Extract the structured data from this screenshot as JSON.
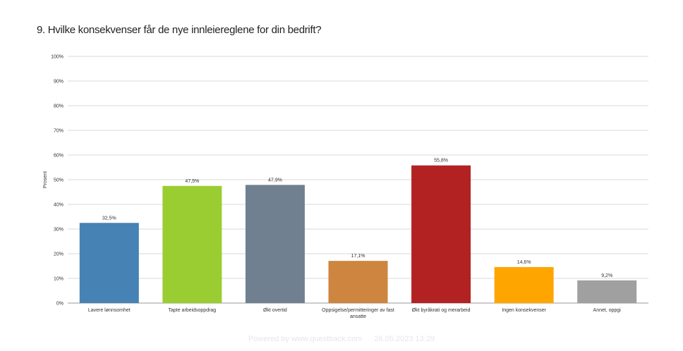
{
  "page": {
    "title": "9. Hvilke konsekvenser får de nye innleiereglene for din bedrift?"
  },
  "footer": {
    "powered_by": "Powered by www.questback.com",
    "timestamp": "26.05.2023 13:29"
  },
  "chart_data": {
    "type": "bar",
    "title": "9. Hvilke konsekvenser får de nye innleiereglene for din bedrift?",
    "xlabel": "",
    "ylabel": "Prosent",
    "ylim": [
      0,
      100
    ],
    "y_ticks": [
      "0%",
      "10%",
      "20%",
      "30%",
      "40%",
      "50%",
      "60%",
      "70%",
      "80%",
      "90%",
      "100%"
    ],
    "grid": true,
    "legend": "none",
    "categories": [
      [
        "Lavere lønnsomhet"
      ],
      [
        "Tapte arbeidsoppdrag"
      ],
      [
        "Økt overtid"
      ],
      [
        "Oppsigelse/permitteringer av fast",
        "ansatte"
      ],
      [
        "Økt byråkrati og merarbeid"
      ],
      [
        "Ingen konsekvenser"
      ],
      [
        "Annet, oppgi"
      ]
    ],
    "values": [
      32.5,
      47.5,
      47.9,
      17.1,
      55.8,
      14.6,
      9.2
    ],
    "data_labels": [
      "32,5%",
      "47,5%",
      "47,9%",
      "17,1%",
      "55,8%",
      "14,6%",
      "9,2%"
    ],
    "colors": [
      "#4682b4",
      "#9acd32",
      "#708090",
      "#cd853f",
      "#b22222",
      "#ffa500",
      "#a0a0a0"
    ]
  }
}
